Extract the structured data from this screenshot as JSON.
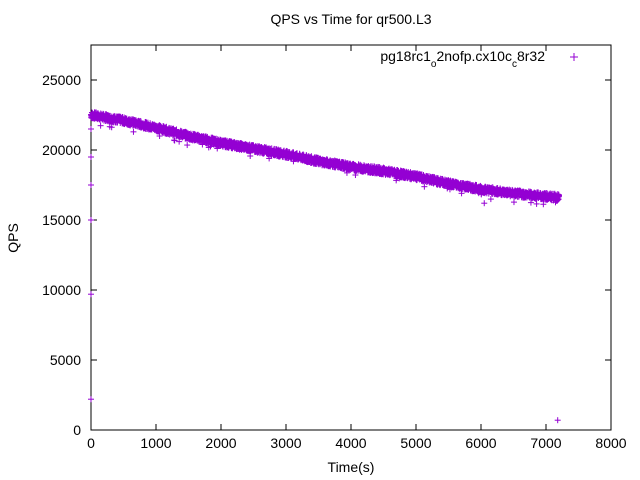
{
  "chart_data": {
    "type": "scatter",
    "title": "QPS vs Time for qr500.L3",
    "xlabel": "Time(s)",
    "ylabel": "QPS",
    "xlim": [
      0,
      8000
    ],
    "ylim": [
      0,
      27500
    ],
    "xticks": [
      0,
      1000,
      2000,
      3000,
      4000,
      5000,
      6000,
      7000,
      8000
    ],
    "yticks": [
      0,
      5000,
      10000,
      15000,
      20000,
      25000
    ],
    "grid": false,
    "legend_position": "top-right",
    "series": [
      {
        "name": "pg18rc1_o2nofp.cx10c_c8r32",
        "legend_parts": [
          "pg18rc1",
          "o",
          "2nofp.cx10c",
          "c",
          "8r32"
        ],
        "color": "#9400d3",
        "marker": "plus",
        "trend": [
          [
            0,
            22500
          ],
          [
            500,
            22100
          ],
          [
            1000,
            21600
          ],
          [
            1500,
            21000
          ],
          [
            2000,
            20500
          ],
          [
            2500,
            20100
          ],
          [
            3000,
            19700
          ],
          [
            3500,
            19200
          ],
          [
            4000,
            18800
          ],
          [
            4500,
            18500
          ],
          [
            5000,
            18100
          ],
          [
            5500,
            17600
          ],
          [
            6000,
            17200
          ],
          [
            6500,
            16900
          ],
          [
            7200,
            16600
          ]
        ],
        "outliers": [
          [
            0,
            2200
          ],
          [
            0,
            9700
          ],
          [
            0,
            15000
          ],
          [
            0,
            17500
          ],
          [
            0,
            19500
          ],
          [
            0,
            21500
          ],
          [
            6050,
            16200
          ],
          [
            7180,
            700
          ]
        ]
      }
    ]
  }
}
